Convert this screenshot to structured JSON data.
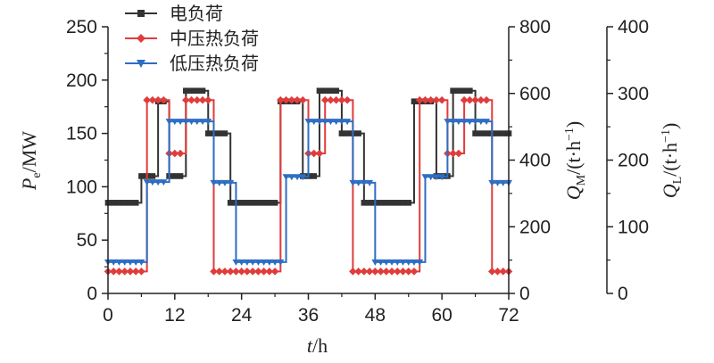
{
  "chart_data": {
    "type": "line",
    "x_axis": {
      "label_var": "t",
      "label_unit": "/h",
      "min": 0,
      "max": 72,
      "ticks": [
        0,
        12,
        24,
        36,
        48,
        60,
        72
      ]
    },
    "y_axes": [
      {
        "id": "pe",
        "label_var": "P",
        "label_sub": "e",
        "label_unit": "/MW",
        "min": 0,
        "max": 250,
        "ticks": [
          0,
          50,
          100,
          150,
          200,
          250
        ],
        "position": "left"
      },
      {
        "id": "qm",
        "label_var": "Q",
        "label_sub": "M",
        "label_unit": "/(t·h",
        "label_sup": "−1",
        "label_close": ")",
        "min": 0,
        "max": 800,
        "ticks": [
          0,
          200,
          400,
          600,
          800
        ],
        "position": "right"
      },
      {
        "id": "ql",
        "label_var": "Q",
        "label_sub": "L",
        "label_unit": "/(t·h",
        "label_sup": "−1",
        "label_close": ")",
        "min": 0,
        "max": 400,
        "ticks": [
          0,
          100,
          200,
          300,
          400
        ],
        "position": "right-outer"
      }
    ],
    "legend_position": "top-left",
    "series": [
      {
        "name": "电负荷",
        "axis": "pe",
        "color": "#333333",
        "marker": "square",
        "values": [
          85,
          85,
          85,
          85,
          85,
          85,
          110,
          110,
          110,
          180,
          180,
          110,
          110,
          110,
          190,
          190,
          190,
          190,
          150,
          150,
          150,
          150,
          85,
          85,
          85,
          85,
          85,
          85,
          85,
          85,
          85,
          180,
          180,
          180,
          180,
          110,
          110,
          110,
          190,
          190,
          190,
          190,
          150,
          150,
          150,
          150,
          85,
          85,
          85,
          85,
          85,
          85,
          85,
          85,
          85,
          180,
          180,
          180,
          180,
          110,
          110,
          110,
          190,
          190,
          190,
          190,
          150,
          150,
          150,
          150,
          150,
          150,
          150
        ]
      },
      {
        "name": "中压热负荷",
        "axis": "qm",
        "color": "#e03c3c",
        "marker": "diamond",
        "values": [
          66,
          66,
          66,
          66,
          66,
          66,
          66,
          580,
          580,
          580,
          580,
          420,
          420,
          420,
          580,
          580,
          580,
          580,
          580,
          66,
          66,
          66,
          66,
          66,
          66,
          66,
          66,
          66,
          66,
          66,
          66,
          580,
          580,
          580,
          580,
          580,
          420,
          420,
          420,
          580,
          580,
          580,
          580,
          580,
          66,
          66,
          66,
          66,
          66,
          66,
          66,
          66,
          66,
          66,
          66,
          66,
          580,
          580,
          580,
          580,
          580,
          420,
          420,
          420,
          580,
          580,
          580,
          580,
          580,
          66,
          66,
          66,
          66
        ]
      },
      {
        "name": "低压热负荷",
        "axis": "ql",
        "color": "#2e6dc2",
        "marker": "triangle-down",
        "values": [
          47,
          47,
          47,
          47,
          47,
          47,
          47,
          167,
          167,
          167,
          167,
          258,
          258,
          258,
          258,
          258,
          258,
          258,
          258,
          166,
          166,
          166,
          166,
          47,
          47,
          47,
          47,
          47,
          47,
          47,
          47,
          47,
          175,
          175,
          175,
          175,
          258,
          258,
          258,
          258,
          258,
          258,
          258,
          258,
          166,
          166,
          166,
          166,
          47,
          47,
          47,
          47,
          47,
          47,
          47,
          47,
          47,
          175,
          175,
          175,
          175,
          258,
          258,
          258,
          258,
          258,
          258,
          258,
          258,
          166,
          166,
          166,
          166
        ]
      }
    ]
  }
}
